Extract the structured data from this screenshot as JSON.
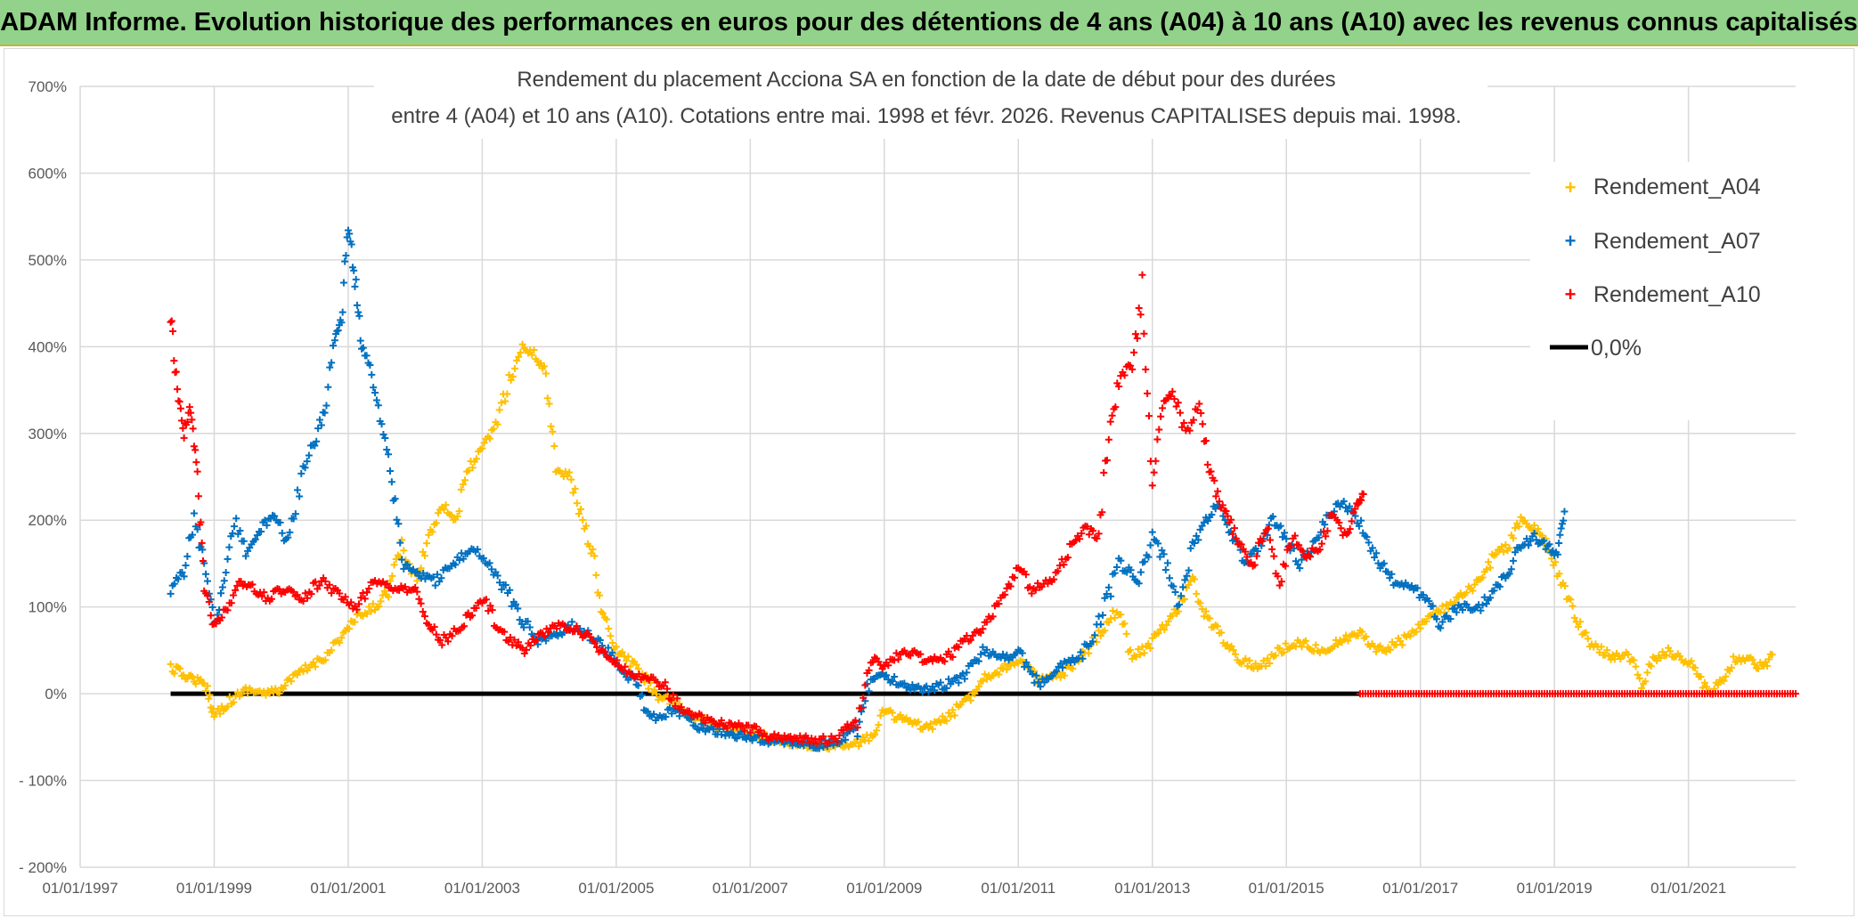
{
  "banner": {
    "title": "ADAM Informe. Evolution historique des performances en euros pour des détentions de 4 ans (A04) à 10 ans (A10) avec les revenus connus capitalisés"
  },
  "chart_data": {
    "type": "scatter",
    "title_lines": [
      "Rendement du placement Acciona SA en fonction de la date de début pour des durées",
      "entre 4 (A04) et 10 ans (A10). Cotations entre mai. 1998 et févr. 2026. Revenus CAPITALISES depuis mai. 1998."
    ],
    "x_range": [
      1997.0,
      2022.6
    ],
    "y_range": [
      -200,
      700
    ],
    "x_ticks": [
      {
        "label": "01/01/1997",
        "x": 1997.0
      },
      {
        "label": "01/01/1999",
        "x": 1999.0
      },
      {
        "label": "01/01/2001",
        "x": 2001.0
      },
      {
        "label": "01/01/2003",
        "x": 2003.0
      },
      {
        "label": "01/01/2005",
        "x": 2005.0
      },
      {
        "label": "01/01/2007",
        "x": 2007.0
      },
      {
        "label": "01/01/2009",
        "x": 2009.0
      },
      {
        "label": "01/01/2011",
        "x": 2011.0
      },
      {
        "label": "01/01/2013",
        "x": 2013.0
      },
      {
        "label": "01/01/2015",
        "x": 2015.0
      },
      {
        "label": "01/01/2017",
        "x": 2017.0
      },
      {
        "label": "01/01/2019",
        "x": 2019.0
      },
      {
        "label": "01/01/2021",
        "x": 2021.0
      }
    ],
    "y_ticks": [
      {
        "label": "700%",
        "y": 700
      },
      {
        "label": "600%",
        "y": 600
      },
      {
        "label": "500%",
        "y": 500
      },
      {
        "label": "400%",
        "y": 400
      },
      {
        "label": "300%",
        "y": 300
      },
      {
        "label": "200%",
        "y": 200
      },
      {
        "label": "100%",
        "y": 100
      },
      {
        "label": "0%",
        "y": 0
      },
      {
        "label": "- 100%",
        "y": -100
      },
      {
        "label": "- 200%",
        "y": -200
      }
    ],
    "legend": {
      "position": "top-right",
      "items": [
        {
          "label": "Rendement_A04",
          "marker": "+",
          "color": "#ffc000"
        },
        {
          "label": "Rendement_A07",
          "marker": "+",
          "color": "#0070c0"
        },
        {
          "label": "Rendement_A10",
          "marker": "+",
          "color": "#ff0000"
        },
        {
          "label": "0,0%",
          "marker": "line",
          "color": "#000000"
        }
      ]
    },
    "series": [
      {
        "name": "Rendement_A04",
        "color": "#ffc000",
        "points": [
          [
            1998.35,
            30
          ],
          [
            1998.6,
            20
          ],
          [
            1998.75,
            15
          ],
          [
            1998.9,
            5
          ],
          [
            1999.0,
            -25
          ],
          [
            1999.2,
            -10
          ],
          [
            1999.5,
            5
          ],
          [
            1999.8,
            0
          ],
          [
            2000.0,
            5
          ],
          [
            2000.3,
            25
          ],
          [
            2000.6,
            40
          ],
          [
            2000.9,
            65
          ],
          [
            2001.1,
            85
          ],
          [
            2001.4,
            100
          ],
          [
            2001.6,
            120
          ],
          [
            2001.8,
            170
          ],
          [
            2002.0,
            130
          ],
          [
            2002.2,
            180
          ],
          [
            2002.4,
            220
          ],
          [
            2002.6,
            200
          ],
          [
            2002.8,
            260
          ],
          [
            2003.0,
            280
          ],
          [
            2003.2,
            310
          ],
          [
            2003.4,
            360
          ],
          [
            2003.6,
            400
          ],
          [
            2003.8,
            390
          ],
          [
            2003.95,
            370
          ],
          [
            2004.1,
            260
          ],
          [
            2004.3,
            250
          ],
          [
            2004.5,
            200
          ],
          [
            2004.65,
            160
          ],
          [
            2004.8,
            90
          ],
          [
            2005.0,
            50
          ],
          [
            2005.3,
            30
          ],
          [
            2005.6,
            0
          ],
          [
            2006.0,
            -20
          ],
          [
            2006.5,
            -40
          ],
          [
            2007.0,
            -45
          ],
          [
            2007.5,
            -55
          ],
          [
            2008.0,
            -60
          ],
          [
            2008.5,
            -60
          ],
          [
            2008.8,
            -50
          ],
          [
            2009.0,
            -20
          ],
          [
            2009.3,
            -30
          ],
          [
            2009.6,
            -40
          ],
          [
            2009.9,
            -30
          ],
          [
            2010.2,
            -10
          ],
          [
            2010.5,
            20
          ],
          [
            2010.8,
            30
          ],
          [
            2011.0,
            40
          ],
          [
            2011.3,
            15
          ],
          [
            2011.6,
            20
          ],
          [
            2011.9,
            35
          ],
          [
            2012.2,
            70
          ],
          [
            2012.5,
            100
          ],
          [
            2012.7,
            40
          ],
          [
            2013.0,
            60
          ],
          [
            2013.3,
            90
          ],
          [
            2013.6,
            130
          ],
          [
            2013.8,
            90
          ],
          [
            2014.0,
            70
          ],
          [
            2014.3,
            40
          ],
          [
            2014.6,
            30
          ],
          [
            2014.9,
            50
          ],
          [
            2015.2,
            60
          ],
          [
            2015.5,
            50
          ],
          [
            2015.8,
            60
          ],
          [
            2016.1,
            70
          ],
          [
            2016.4,
            50
          ],
          [
            2016.7,
            60
          ],
          [
            2017.0,
            80
          ],
          [
            2017.3,
            95
          ],
          [
            2017.6,
            110
          ],
          [
            2017.9,
            130
          ],
          [
            2018.1,
            160
          ],
          [
            2018.3,
            170
          ],
          [
            2018.5,
            200
          ],
          [
            2018.7,
            190
          ],
          [
            2018.9,
            170
          ],
          [
            2019.1,
            130
          ],
          [
            2019.3,
            90
          ],
          [
            2019.5,
            60
          ],
          [
            2019.7,
            50
          ],
          [
            2019.9,
            40
          ],
          [
            2020.1,
            50
          ],
          [
            2020.3,
            10
          ],
          [
            2020.5,
            40
          ],
          [
            2020.7,
            50
          ],
          [
            2020.9,
            40
          ],
          [
            2021.1,
            30
          ],
          [
            2021.3,
            0
          ],
          [
            2021.5,
            15
          ],
          [
            2021.7,
            40
          ],
          [
            2021.9,
            40
          ],
          [
            2022.1,
            30
          ],
          [
            2022.25,
            45
          ]
        ]
      },
      {
        "name": "Rendement_A07",
        "color": "#0070c0",
        "points": [
          [
            1998.35,
            120
          ],
          [
            1998.55,
            140
          ],
          [
            1998.7,
            200
          ],
          [
            1998.85,
            150
          ],
          [
            1999.0,
            80
          ],
          [
            1999.15,
            130
          ],
          [
            1999.3,
            200
          ],
          [
            1999.5,
            160
          ],
          [
            1999.7,
            190
          ],
          [
            1999.9,
            210
          ],
          [
            2000.1,
            170
          ],
          [
            2000.3,
            250
          ],
          [
            2000.5,
            290
          ],
          [
            2000.65,
            330
          ],
          [
            2000.8,
            410
          ],
          [
            2000.9,
            430
          ],
          [
            2001.0,
            540
          ],
          [
            2001.1,
            480
          ],
          [
            2001.2,
            400
          ],
          [
            2001.35,
            370
          ],
          [
            2001.5,
            310
          ],
          [
            2001.65,
            250
          ],
          [
            2001.8,
            150
          ],
          [
            2002.0,
            140
          ],
          [
            2002.3,
            130
          ],
          [
            2002.6,
            150
          ],
          [
            2002.9,
            170
          ],
          [
            2003.2,
            140
          ],
          [
            2003.5,
            100
          ],
          [
            2003.8,
            60
          ],
          [
            2004.1,
            70
          ],
          [
            2004.4,
            80
          ],
          [
            2004.7,
            60
          ],
          [
            2005.0,
            40
          ],
          [
            2005.3,
            10
          ],
          [
            2005.5,
            -30
          ],
          [
            2005.8,
            -20
          ],
          [
            2006.0,
            -25
          ],
          [
            2006.3,
            -40
          ],
          [
            2006.6,
            -45
          ],
          [
            2007.0,
            -50
          ],
          [
            2007.3,
            -55
          ],
          [
            2007.6,
            -55
          ],
          [
            2008.0,
            -60
          ],
          [
            2008.3,
            -55
          ],
          [
            2008.6,
            -40
          ],
          [
            2008.8,
            20
          ],
          [
            2009.0,
            20
          ],
          [
            2009.3,
            10
          ],
          [
            2009.6,
            5
          ],
          [
            2009.9,
            10
          ],
          [
            2010.2,
            20
          ],
          [
            2010.5,
            50
          ],
          [
            2010.8,
            40
          ],
          [
            2011.0,
            50
          ],
          [
            2011.3,
            10
          ],
          [
            2011.6,
            30
          ],
          [
            2011.9,
            40
          ],
          [
            2012.2,
            80
          ],
          [
            2012.5,
            150
          ],
          [
            2012.8,
            130
          ],
          [
            2013.0,
            180
          ],
          [
            2013.2,
            150
          ],
          [
            2013.4,
            100
          ],
          [
            2013.6,
            170
          ],
          [
            2013.8,
            200
          ],
          [
            2014.0,
            220
          ],
          [
            2014.2,
            180
          ],
          [
            2014.4,
            150
          ],
          [
            2014.6,
            170
          ],
          [
            2014.8,
            200
          ],
          [
            2015.0,
            180
          ],
          [
            2015.2,
            150
          ],
          [
            2015.4,
            170
          ],
          [
            2015.6,
            200
          ],
          [
            2015.8,
            220
          ],
          [
            2016.0,
            210
          ],
          [
            2016.2,
            180
          ],
          [
            2016.4,
            150
          ],
          [
            2016.6,
            130
          ],
          [
            2016.9,
            120
          ],
          [
            2017.1,
            110
          ],
          [
            2017.3,
            80
          ],
          [
            2017.6,
            100
          ],
          [
            2017.9,
            100
          ],
          [
            2018.1,
            120
          ],
          [
            2018.3,
            140
          ],
          [
            2018.5,
            170
          ],
          [
            2018.7,
            180
          ],
          [
            2018.9,
            170
          ],
          [
            2019.05,
            160
          ],
          [
            2019.15,
            210
          ]
        ]
      },
      {
        "name": "Rendement_A10",
        "color": "#ff0000",
        "points": [
          [
            1998.35,
            440
          ],
          [
            1998.45,
            350
          ],
          [
            1998.55,
            300
          ],
          [
            1998.65,
            330
          ],
          [
            1998.75,
            250
          ],
          [
            1998.85,
            120
          ],
          [
            1999.0,
            80
          ],
          [
            1999.2,
            100
          ],
          [
            1999.4,
            130
          ],
          [
            1999.6,
            120
          ],
          [
            1999.8,
            110
          ],
          [
            2000.0,
            120
          ],
          [
            2000.3,
            110
          ],
          [
            2000.6,
            130
          ],
          [
            2000.9,
            110
          ],
          [
            2001.1,
            100
          ],
          [
            2001.4,
            130
          ],
          [
            2001.7,
            120
          ],
          [
            2002.0,
            120
          ],
          [
            2002.2,
            80
          ],
          [
            2002.4,
            60
          ],
          [
            2002.7,
            80
          ],
          [
            2003.0,
            110
          ],
          [
            2003.3,
            70
          ],
          [
            2003.6,
            50
          ],
          [
            2003.9,
            70
          ],
          [
            2004.2,
            80
          ],
          [
            2004.5,
            70
          ],
          [
            2004.8,
            50
          ],
          [
            2005.1,
            30
          ],
          [
            2005.4,
            20
          ],
          [
            2005.7,
            10
          ],
          [
            2006.0,
            -20
          ],
          [
            2006.3,
            -30
          ],
          [
            2006.6,
            -35
          ],
          [
            2007.0,
            -40
          ],
          [
            2007.3,
            -50
          ],
          [
            2007.6,
            -50
          ],
          [
            2008.0,
            -55
          ],
          [
            2008.3,
            -50
          ],
          [
            2008.6,
            -30
          ],
          [
            2008.8,
            40
          ],
          [
            2009.0,
            30
          ],
          [
            2009.3,
            50
          ],
          [
            2009.6,
            40
          ],
          [
            2009.9,
            40
          ],
          [
            2010.2,
            60
          ],
          [
            2010.5,
            80
          ],
          [
            2010.8,
            110
          ],
          [
            2011.0,
            150
          ],
          [
            2011.2,
            120
          ],
          [
            2011.5,
            130
          ],
          [
            2011.8,
            170
          ],
          [
            2012.0,
            190
          ],
          [
            2012.2,
            180
          ],
          [
            2012.35,
            300
          ],
          [
            2012.5,
            360
          ],
          [
            2012.7,
            380
          ],
          [
            2012.85,
            460
          ],
          [
            2013.0,
            250
          ],
          [
            2013.15,
            330
          ],
          [
            2013.3,
            350
          ],
          [
            2013.5,
            300
          ],
          [
            2013.7,
            330
          ],
          [
            2013.85,
            260
          ],
          [
            2014.0,
            220
          ],
          [
            2014.15,
            200
          ],
          [
            2014.3,
            170
          ],
          [
            2014.5,
            150
          ],
          [
            2014.7,
            190
          ],
          [
            2014.9,
            130
          ],
          [
            2015.1,
            180
          ],
          [
            2015.3,
            160
          ],
          [
            2015.5,
            170
          ],
          [
            2015.7,
            210
          ],
          [
            2015.9,
            180
          ],
          [
            2016.05,
            220
          ],
          [
            2016.15,
            230
          ]
        ]
      }
    ],
    "zero_tail_series": {
      "name": "Rendement_A10",
      "from_x": 2016.1,
      "to_x": 2022.6,
      "y": 0
    },
    "reference_line": {
      "name": "0,0%",
      "y": 0,
      "from_x": 1998.35,
      "to_x": 2016.1
    }
  }
}
